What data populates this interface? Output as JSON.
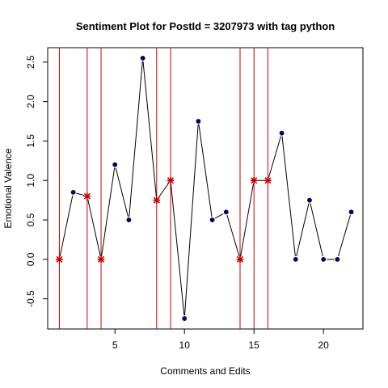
{
  "chart_data": {
    "type": "line",
    "title": "Sentiment Plot for PostId =  3207973  with tag  python",
    "xlabel": "Comments and Edits",
    "ylabel": "Emotional Valence",
    "xlim": [
      0.16,
      22.84
    ],
    "ylim": [
      -0.8825,
      2.6825
    ],
    "x_ticks": [
      5,
      10,
      15,
      20
    ],
    "y_ticks": [
      -0.5,
      0.0,
      0.5,
      1.0,
      1.5,
      2.0,
      2.5
    ],
    "x_tick_labels": [
      "5",
      "10",
      "15",
      "20"
    ],
    "y_tick_labels": [
      "-0.5",
      "0.0",
      "0.5",
      "1.0",
      "1.5",
      "2.0",
      "2.5"
    ],
    "x": [
      1,
      2,
      3,
      4,
      5,
      6,
      7,
      8,
      9,
      10,
      11,
      12,
      13,
      14,
      15,
      16,
      17,
      18,
      19,
      20,
      21,
      22
    ],
    "y": [
      0,
      0.85,
      0.8,
      0,
      1.2,
      0.5,
      2.55,
      0.75,
      1.0,
      -0.75,
      1.75,
      0.5,
      0.6,
      0,
      1.0,
      1.0,
      1.6,
      0,
      0.75,
      0,
      0,
      0.6
    ],
    "edit_points": [
      1,
      3,
      4,
      8,
      9,
      14,
      15,
      16
    ],
    "vertical_lines_x": [
      1,
      3,
      4,
      8,
      9,
      14,
      15,
      16
    ],
    "colors": {
      "line": "#000000",
      "point": "#00008B",
      "edit_marker": "#CC0000",
      "vline": "#CC0000"
    }
  }
}
